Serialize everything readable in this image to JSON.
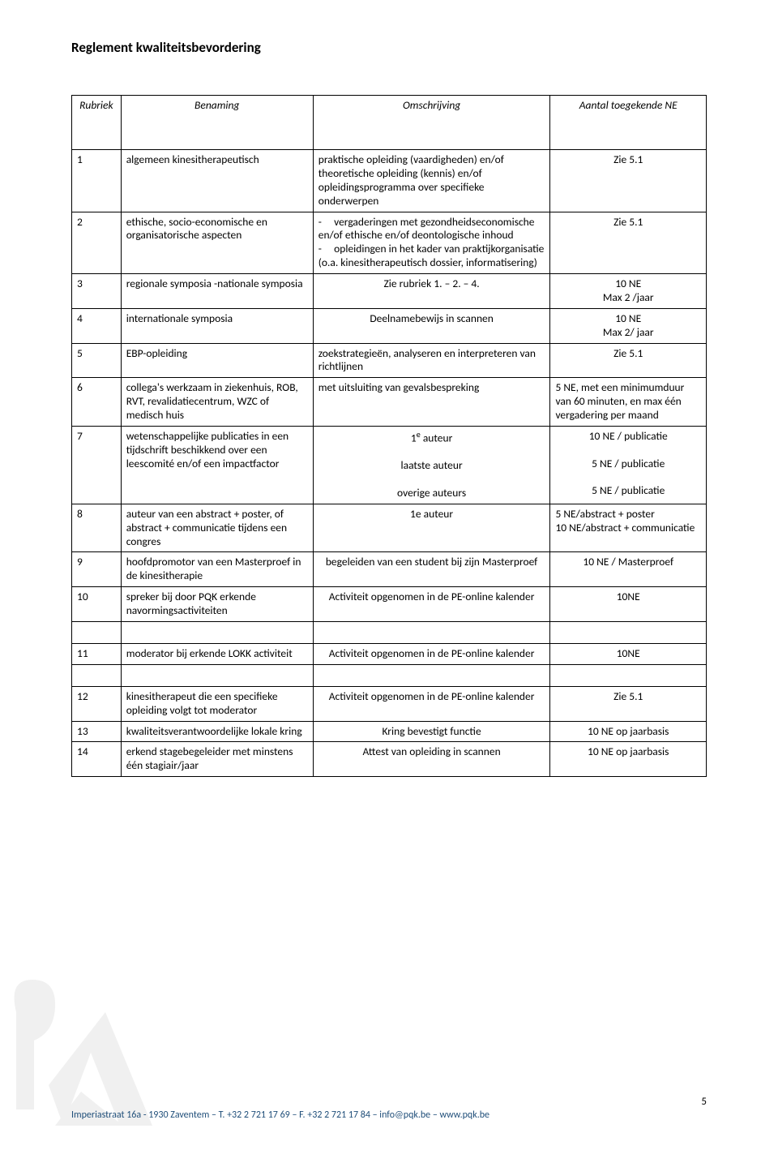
{
  "doc_title": "Reglement kwaliteitsbevordering",
  "headers": {
    "rubriek": "Rubriek",
    "benaming": "Benaming",
    "omschrijving": "Omschrijving",
    "ne": "Aantal toegekende NE"
  },
  "rows": [
    {
      "num": "1",
      "ben": "algemeen kinesitherapeutisch",
      "oms": "praktische opleiding (vaardigheden) en/of theoretische opleiding (kennis) en/of opleidingsprogramma over specifieke onderwerpen",
      "ne": "Zie 5.1"
    },
    {
      "num": "2",
      "ben": "ethische, socio-economische en organisatorische aspecten",
      "oms": "-      vergaderingen met gezondheidseconomische en/of ethische en/of deontologische inhoud\n-      opleidingen in het kader van praktijkorganisatie (o.a. kinesitherapeutisch dossier, informatisering)",
      "ne": "Zie 5.1"
    },
    {
      "num": "3",
      "ben": "regionale symposia -nationale symposia",
      "oms": "Zie rubriek 1. – 2. – 4.",
      "ne": "10 NE\nMax 2 /jaar"
    },
    {
      "num": "4",
      "ben": "internationale symposia",
      "oms": "Deelnamebewijs in scannen",
      "ne": "10 NE\nMax 2/ jaar"
    },
    {
      "num": "5",
      "ben": "EBP-opleiding",
      "oms": "zoekstrategieën, analyseren en interpreteren van richtlijnen",
      "ne": "Zie 5.1"
    },
    {
      "num": "6",
      "ben": "collega's werkzaam in ziekenhuis, ROB, RVT, revalidatiecentrum, WZC of medisch huis",
      "oms": "met uitsluiting van gevalsbespreking",
      "ne": "5 NE, met een minimumduur van 60 minuten, en max één vergadering per maand"
    },
    {
      "num": "7",
      "ben": "wetenschappelijke publicaties in een tijdschrift beschikkend over een leescomité en/of een impactfactor",
      "oms_html": "1<sup>e</sup> auteur<br><br>laatste auteur<br><br>overige auteurs",
      "ne_html": "10 NE / publicatie<br><br>5 NE / publicatie<br><br>5 NE / publicatie"
    },
    {
      "num": "8",
      "ben": "auteur van een abstract + poster, of abstract + communicatie tijdens een congres",
      "oms": "1e auteur",
      "ne": "5 NE/abstract + poster\n10 NE/abstract + communicatie"
    },
    {
      "num": "9",
      "ben": "hoofdpromotor van een Masterproef in de kinesitherapie",
      "oms": "begeleiden van een student bij zijn Masterproef",
      "ne": "10 NE / Masterproef"
    },
    {
      "num": "10",
      "ben": "spreker bij door PQK erkende navormingsactiviteiten",
      "oms": "Activiteit opgenomen in de PE-online kalender",
      "ne": "10NE"
    },
    {
      "num": "11",
      "ben": "moderator bij erkende LOKK activiteit",
      "oms": "Activiteit opgenomen in de PE-online kalender",
      "ne": "10NE",
      "spacer_before": true
    },
    {
      "num": "12",
      "ben": "kinesitherapeut die een specifieke opleiding volgt tot moderator",
      "oms": "Activiteit opgenomen in de PE-online kalender",
      "ne": "Zie 5.1",
      "spacer_before": true
    },
    {
      "num": "13",
      "ben": "kwaliteitsverantwoordelijke lokale kring",
      "oms": "Kring bevestigt functie",
      "ne": "10 NE op jaarbasis"
    },
    {
      "num": "14",
      "ben": "erkend stagebegeleider met minstens één stagiair/jaar",
      "oms": "Attest van opleiding in scannen",
      "ne": "10 NE op jaarbasis"
    }
  ],
  "footer": {
    "page": "5",
    "line": "Imperiastraat 16a - 1930 Zaventem – T. +32 2 721 17 69 – F. +32 2 721 17 84 – info@pqk.be – www.pqk.be"
  },
  "colors": {
    "footer_text": "#1f4e79",
    "watermark": "#bfbfbf"
  }
}
